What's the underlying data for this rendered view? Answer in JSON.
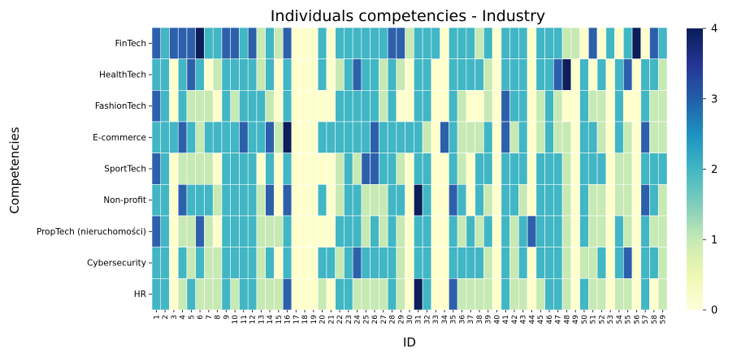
{
  "chart_data": {
    "type": "heatmap",
    "title": "Individuals competencies - Industry",
    "xlabel": "ID",
    "ylabel": "Competencies",
    "colorbar": {
      "min": 0,
      "max": 4,
      "ticks": [
        "0",
        "1",
        "2",
        "3",
        "4"
      ],
      "colormap": "YlGnBu"
    },
    "x_categories": [
      "1",
      "2",
      "3",
      "4",
      "5",
      "6",
      "7",
      "8",
      "9",
      "10",
      "11",
      "12",
      "13",
      "14",
      "15",
      "16",
      "17",
      "18",
      "19",
      "20",
      "21",
      "22",
      "23",
      "24",
      "25",
      "26",
      "27",
      "28",
      "29",
      "30",
      "31",
      "32",
      "33",
      "34",
      "35",
      "36",
      "37",
      "38",
      "39",
      "40",
      "41",
      "42",
      "43",
      "44",
      "45",
      "46",
      "47",
      "48",
      "49",
      "50",
      "51",
      "52",
      "53",
      "54",
      "55",
      "56",
      "57",
      "58",
      "59"
    ],
    "y_categories": [
      "FinTech",
      "HealthTech",
      "FashionTech",
      "E-commerce",
      "SportTech",
      "Non-profit",
      "PropTech (nieruchomości)",
      "Cybersecurity",
      "HR"
    ],
    "values": [
      [
        3,
        2,
        3,
        3,
        3,
        4,
        2,
        2,
        3,
        3,
        2,
        3,
        1,
        2,
        1,
        3,
        0,
        0,
        0,
        2,
        0,
        2,
        2,
        2,
        2,
        2,
        2,
        3,
        3,
        1,
        2,
        2,
        2,
        0,
        2,
        2,
        2,
        1,
        2,
        0,
        2,
        2,
        2,
        0,
        2,
        2,
        2,
        1,
        1,
        0,
        3,
        0,
        2,
        0,
        2,
        4,
        0,
        3,
        2
      ],
      [
        2,
        2,
        0,
        2,
        3,
        2,
        0,
        1,
        2,
        2,
        2,
        2,
        1,
        2,
        0,
        2,
        0,
        0,
        0,
        2,
        0,
        1,
        2,
        3,
        2,
        2,
        1,
        2,
        1,
        0,
        2,
        2,
        0,
        0,
        2,
        2,
        2,
        2,
        1,
        0,
        2,
        2,
        2,
        0,
        2,
        2,
        3,
        4,
        0,
        2,
        0,
        2,
        0,
        2,
        3,
        0,
        2,
        2,
        1
      ],
      [
        3,
        2,
        0,
        2,
        1,
        1,
        1,
        0,
        2,
        1,
        2,
        2,
        2,
        1,
        0,
        2,
        0,
        0,
        0,
        0,
        0,
        2,
        2,
        2,
        2,
        2,
        1,
        2,
        0,
        0,
        2,
        2,
        0,
        0,
        2,
        1,
        0,
        0,
        1,
        0,
        3,
        2,
        2,
        0,
        1,
        2,
        1,
        0,
        0,
        2,
        1,
        1,
        0,
        2,
        0,
        0,
        2,
        1,
        1
      ],
      [
        2,
        2,
        2,
        3,
        2,
        1,
        2,
        2,
        2,
        2,
        3,
        2,
        2,
        3,
        1,
        4,
        0,
        0,
        0,
        2,
        2,
        2,
        2,
        2,
        2,
        3,
        2,
        2,
        2,
        2,
        2,
        1,
        0,
        3,
        2,
        1,
        1,
        1,
        2,
        0,
        3,
        1,
        2,
        0,
        1,
        2,
        1,
        1,
        0,
        2,
        2,
        1,
        0,
        2,
        1,
        0,
        3,
        1,
        1
      ],
      [
        3,
        2,
        0,
        1,
        1,
        1,
        1,
        0,
        2,
        2,
        2,
        2,
        0,
        2,
        0,
        2,
        0,
        0,
        0,
        0,
        0,
        1,
        2,
        1,
        3,
        3,
        2,
        2,
        1,
        0,
        2,
        2,
        0,
        0,
        2,
        1,
        0,
        2,
        2,
        0,
        2,
        2,
        2,
        0,
        2,
        2,
        2,
        1,
        0,
        2,
        2,
        2,
        0,
        1,
        1,
        0,
        2,
        2,
        2
      ],
      [
        2,
        2,
        0,
        3,
        2,
        2,
        2,
        1,
        2,
        2,
        2,
        2,
        1,
        3,
        0,
        3,
        0,
        0,
        0,
        2,
        0,
        1,
        2,
        2,
        1,
        1,
        1,
        2,
        2,
        0,
        4,
        2,
        0,
        0,
        3,
        2,
        0,
        2,
        1,
        0,
        2,
        2,
        1,
        0,
        2,
        2,
        2,
        1,
        0,
        2,
        1,
        1,
        0,
        1,
        1,
        0,
        3,
        2,
        1
      ],
      [
        3,
        2,
        0,
        1,
        1,
        3,
        1,
        0,
        2,
        2,
        2,
        2,
        1,
        1,
        1,
        2,
        0,
        0,
        0,
        0,
        0,
        2,
        2,
        2,
        1,
        2,
        1,
        2,
        1,
        0,
        2,
        2,
        0,
        0,
        2,
        1,
        2,
        1,
        2,
        0,
        2,
        1,
        2,
        3,
        2,
        2,
        2,
        1,
        0,
        2,
        1,
        1,
        0,
        2,
        1,
        0,
        2,
        1,
        1
      ],
      [
        2,
        2,
        0,
        2,
        1,
        2,
        1,
        1,
        2,
        2,
        2,
        2,
        1,
        2,
        0,
        2,
        0,
        0,
        0,
        2,
        2,
        1,
        2,
        3,
        2,
        2,
        2,
        2,
        1,
        0,
        2,
        2,
        0,
        0,
        2,
        2,
        2,
        2,
        1,
        0,
        2,
        1,
        2,
        0,
        2,
        2,
        2,
        1,
        0,
        1,
        1,
        2,
        0,
        2,
        3,
        0,
        2,
        2,
        1
      ],
      [
        2,
        2,
        0,
        1,
        2,
        1,
        1,
        1,
        2,
        1,
        2,
        2,
        1,
        1,
        1,
        3,
        0,
        0,
        0,
        1,
        0,
        2,
        2,
        1,
        1,
        1,
        1,
        2,
        1,
        0,
        4,
        2,
        0,
        0,
        3,
        1,
        1,
        1,
        1,
        0,
        2,
        1,
        1,
        0,
        1,
        2,
        2,
        1,
        0,
        2,
        1,
        1,
        0,
        1,
        1,
        0,
        2,
        0,
        1
      ]
    ]
  }
}
